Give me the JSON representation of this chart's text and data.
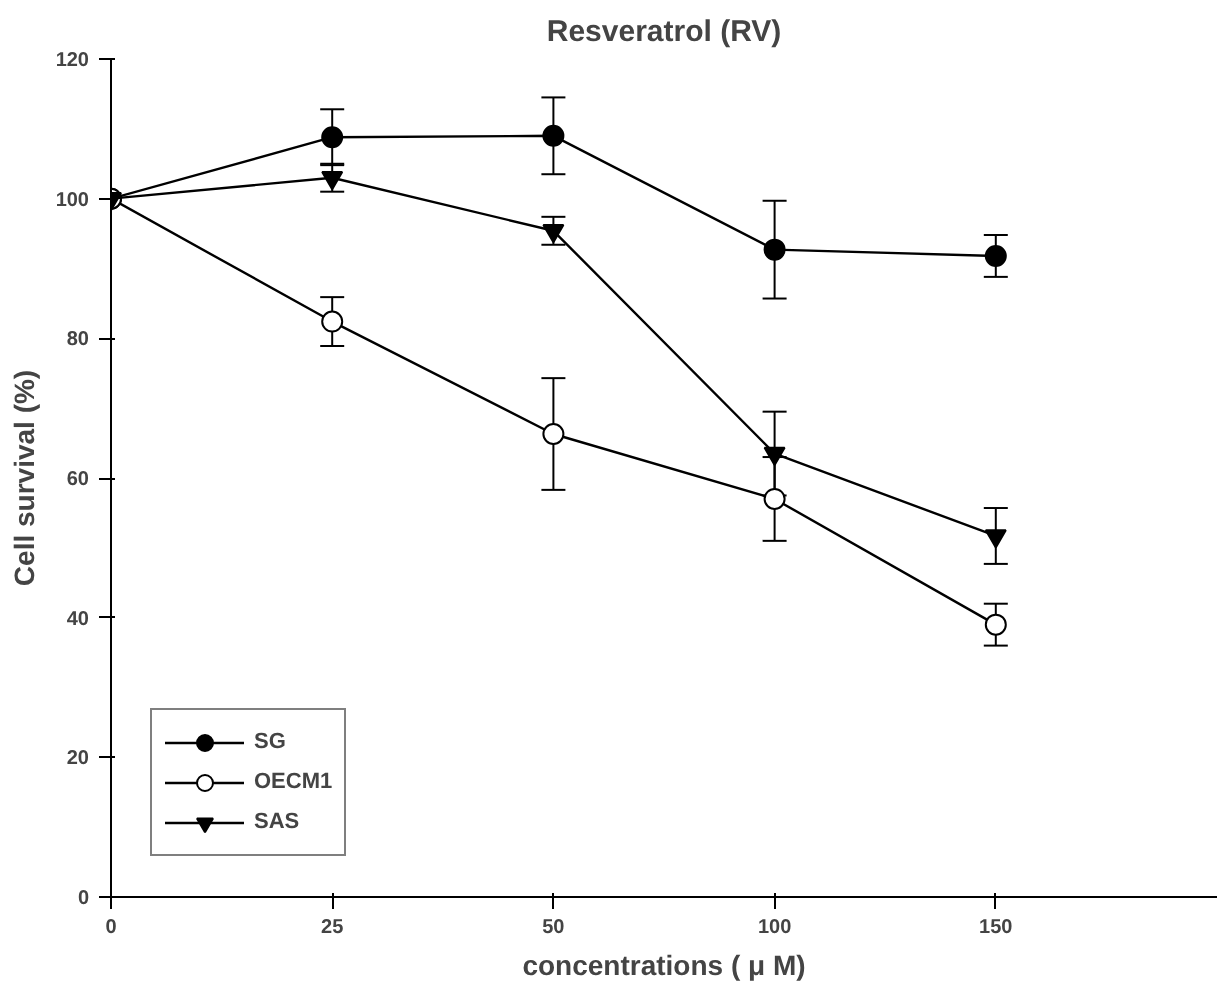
{
  "chart_data": {
    "type": "line",
    "title": "Resveratrol (RV)",
    "xlabel": "concentrations ( μ M)",
    "ylabel": "Cell survival (%)",
    "categories": [
      "0",
      "25",
      "50",
      "100",
      "150"
    ],
    "ylim": [
      0,
      120
    ],
    "yticks": [
      0,
      20,
      40,
      60,
      80,
      100,
      120
    ],
    "grid": false,
    "legend": "bottom left",
    "series": [
      {
        "name": "SG",
        "color": "#000000",
        "marker": "circle",
        "values": [
          100,
          108.8,
          109,
          92.7,
          91.8
        ],
        "errors": [
          null,
          4,
          5.5,
          7,
          3
        ]
      },
      {
        "name": "OECM1",
        "color": "#000000",
        "marker": "circle_open",
        "values": [
          100,
          82.4,
          66.3,
          57,
          39
        ],
        "errors": [
          null,
          3.5,
          8,
          6,
          3
        ]
      },
      {
        "name": "SAS",
        "color": "#000000",
        "marker": "triangle",
        "values": [
          100,
          103,
          95.4,
          63.5,
          51.7
        ],
        "errors": [
          null,
          2,
          2,
          6,
          4
        ]
      }
    ]
  }
}
